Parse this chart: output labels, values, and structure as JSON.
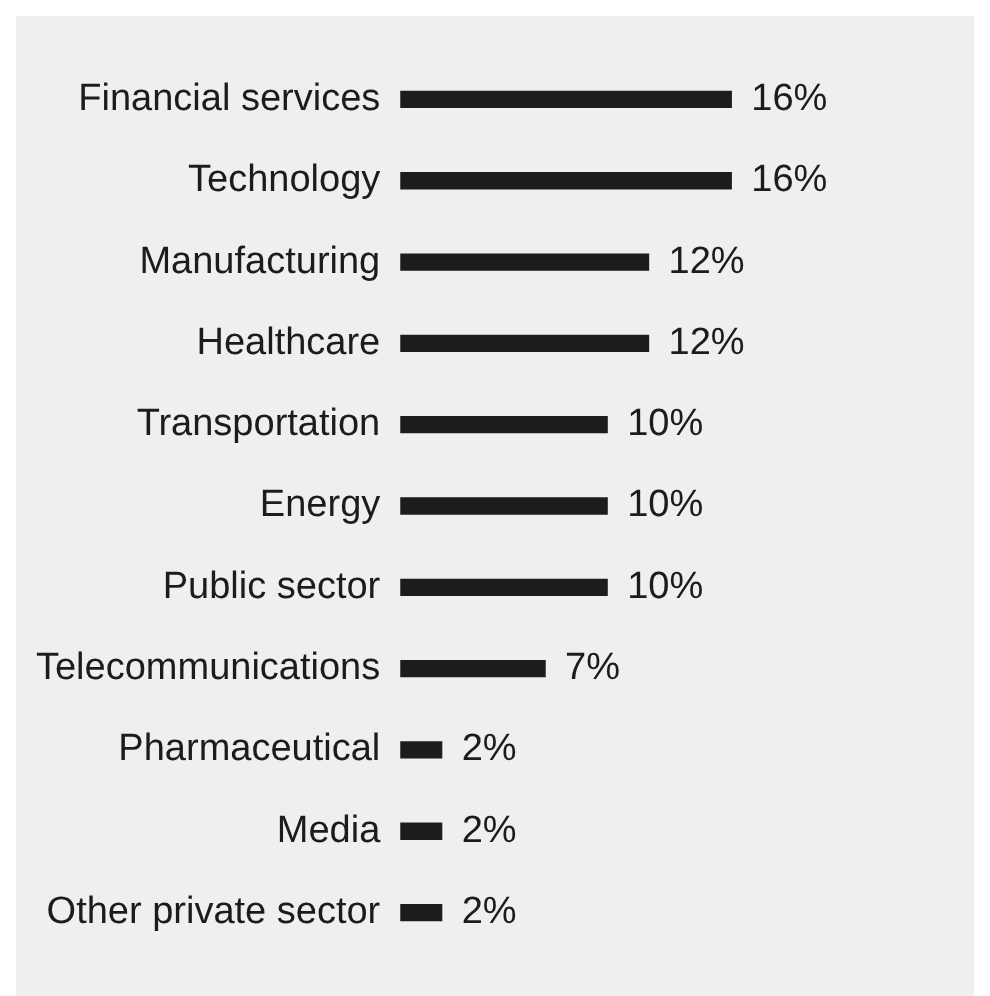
{
  "chart_data": {
    "type": "bar",
    "orientation": "horizontal",
    "categories": [
      "Financial services",
      "Technology",
      "Manufacturing",
      "Healthcare",
      "Transportation",
      "Energy",
      "Public sector",
      "Telecommunications",
      "Pharmaceutical",
      "Media",
      "Other private sector"
    ],
    "values": [
      16,
      16,
      12,
      12,
      10,
      10,
      10,
      7,
      2,
      2,
      2
    ],
    "value_labels": [
      "16%",
      "16%",
      "12%",
      "12%",
      "10%",
      "10%",
      "10%",
      "7%",
      "2%",
      "2%",
      "2%"
    ],
    "color": "#1c1c1c",
    "grid": false,
    "legend": false
  }
}
